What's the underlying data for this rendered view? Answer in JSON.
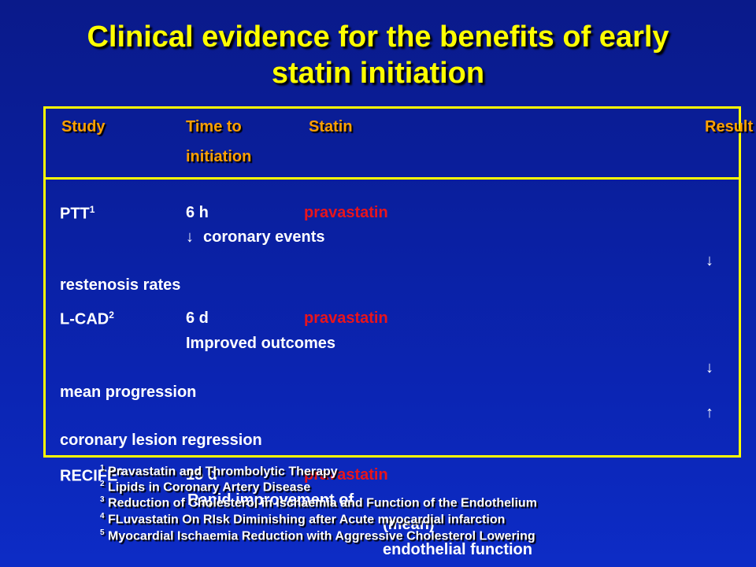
{
  "title_line1": "Clinical evidence for the benefits of early",
  "title_line2": "statin initiation",
  "header": {
    "study": "Study",
    "time_line1": "Time to",
    "time_line2": "initiation",
    "statin": "Statin",
    "result": "Result"
  },
  "rows": [
    {
      "study": "PTT",
      "ref": "1",
      "time": "6 h",
      "statin": "pravastatin",
      "result1": "coronary events",
      "result2": "restenosis rates"
    },
    {
      "study": "L-CAD",
      "ref": "2",
      "time": "6 d",
      "statin": "pravastatin",
      "result1": "Improved outcomes",
      "result2": "mean progression",
      "result3": "coronary lesion regression"
    },
    {
      "study": "RECIFE",
      "ref": "3",
      "time": "15 d",
      "statin": "pravastatin",
      "result1": "Rapid improvement of",
      "result2": "(mean)",
      "result3": "endothelial function"
    }
  ],
  "footnotes": [
    {
      "num": "1",
      "text": "Pravastatin and Thrombolytic Therapy"
    },
    {
      "num": "2",
      "text": "Lipids in Coronary Artery Disease"
    },
    {
      "num": "3",
      "text": "Reduction of Cholesterol in Ischaemia and Function of the Endothelium"
    },
    {
      "num": "4",
      "text": "FLuvastatin On RIsk Diminishing after Acute myocardial infarction"
    },
    {
      "num": "5",
      "text": "Myocardial Ischaemia Reduction with Aggressive Cholesterol Lowering"
    }
  ],
  "icons": {
    "down": "down-arrow-icon",
    "up": "up-arrow-icon"
  },
  "colors": {
    "title": "#ffff00",
    "header": "#ffa000",
    "statin": "#e8141c",
    "background": "#0b1fa8"
  }
}
